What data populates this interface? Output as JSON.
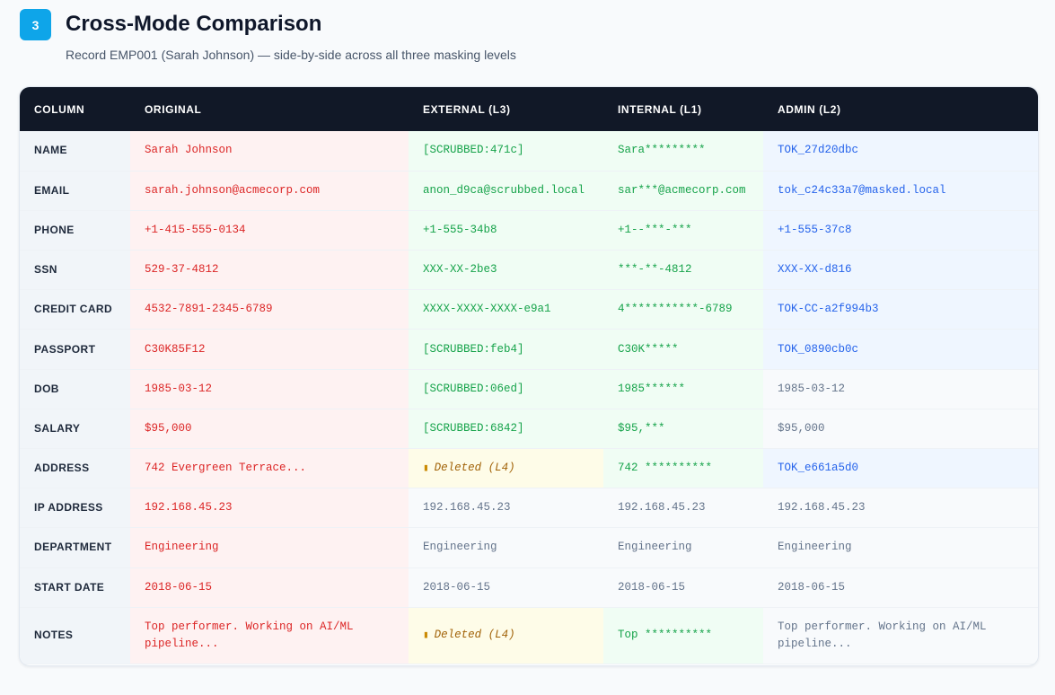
{
  "header": {
    "step": "3",
    "title": "Cross-Mode Comparison",
    "subtitle": "Record EMP001 (Sarah Johnson) — side-by-side across all three masking levels"
  },
  "table": {
    "columns": [
      "COLUMN",
      "ORIGINAL",
      "EXTERNAL (L3)",
      "INTERNAL (L1)",
      "ADMIN (L2)"
    ],
    "rows": [
      {
        "column": "NAME",
        "original": "Sarah Johnson",
        "external": {
          "value": "[SCRUBBED:471c]",
          "style": "scrubbed"
        },
        "internal": {
          "value": "Sara*********",
          "style": "scrubbed"
        },
        "admin": {
          "value": "TOK_27d20dbc",
          "style": "token"
        }
      },
      {
        "column": "EMAIL",
        "original": "sarah.johnson@acmecorp.com",
        "external": {
          "value": "anon_d9ca@scrubbed.local",
          "style": "scrubbed"
        },
        "internal": {
          "value": "sar***@acmecorp.com",
          "style": "scrubbed"
        },
        "admin": {
          "value": "tok_c24c33a7@masked.local",
          "style": "token"
        }
      },
      {
        "column": "PHONE",
        "original": "+1-415-555-0134",
        "external": {
          "value": "+1-555-34b8",
          "style": "scrubbed"
        },
        "internal": {
          "value": "+1--***-***",
          "style": "scrubbed"
        },
        "admin": {
          "value": "+1-555-37c8",
          "style": "token"
        }
      },
      {
        "column": "SSN",
        "original": "529-37-4812",
        "external": {
          "value": "XXX-XX-2be3",
          "style": "scrubbed"
        },
        "internal": {
          "value": "***-**-4812",
          "style": "scrubbed"
        },
        "admin": {
          "value": "XXX-XX-d816",
          "style": "token"
        }
      },
      {
        "column": "CREDIT CARD",
        "original": "4532-7891-2345-6789",
        "external": {
          "value": "XXXX-XXXX-XXXX-e9a1",
          "style": "scrubbed"
        },
        "internal": {
          "value": "4***********-6789",
          "style": "scrubbed"
        },
        "admin": {
          "value": "TOK-CC-a2f994b3",
          "style": "token"
        }
      },
      {
        "column": "PASSPORT",
        "original": "C30K85F12",
        "external": {
          "value": "[SCRUBBED:feb4]",
          "style": "scrubbed"
        },
        "internal": {
          "value": "C30K*****",
          "style": "scrubbed"
        },
        "admin": {
          "value": "TOK_0890cb0c",
          "style": "token"
        }
      },
      {
        "column": "DOB",
        "original": "1985-03-12",
        "external": {
          "value": "[SCRUBBED:06ed]",
          "style": "scrubbed"
        },
        "internal": {
          "value": "1985******",
          "style": "scrubbed"
        },
        "admin": {
          "value": "1985-03-12",
          "style": "plain"
        }
      },
      {
        "column": "SALARY",
        "original": "$95,000",
        "external": {
          "value": "[SCRUBBED:6842]",
          "style": "scrubbed"
        },
        "internal": {
          "value": "$95,***",
          "style": "scrubbed"
        },
        "admin": {
          "value": "$95,000",
          "style": "plain"
        }
      },
      {
        "column": "ADDRESS",
        "original": "742 Evergreen Terrace...",
        "external": {
          "value": "Deleted (L4)",
          "style": "deleted"
        },
        "internal": {
          "value": "742 **********",
          "style": "scrubbed"
        },
        "admin": {
          "value": "TOK_e661a5d0",
          "style": "token"
        }
      },
      {
        "column": "IP ADDRESS",
        "original": "192.168.45.23",
        "external": {
          "value": "192.168.45.23",
          "style": "plain"
        },
        "internal": {
          "value": "192.168.45.23",
          "style": "plain"
        },
        "admin": {
          "value": "192.168.45.23",
          "style": "plain"
        }
      },
      {
        "column": "DEPARTMENT",
        "original": "Engineering",
        "external": {
          "value": "Engineering",
          "style": "plain"
        },
        "internal": {
          "value": "Engineering",
          "style": "plain"
        },
        "admin": {
          "value": "Engineering",
          "style": "plain"
        }
      },
      {
        "column": "START DATE",
        "original": "2018-06-15",
        "external": {
          "value": "2018-06-15",
          "style": "plain"
        },
        "internal": {
          "value": "2018-06-15",
          "style": "plain"
        },
        "admin": {
          "value": "2018-06-15",
          "style": "plain"
        }
      },
      {
        "column": "NOTES",
        "original": "Top performer. Working on AI/ML pipeline...",
        "external": {
          "value": "Deleted (L4)",
          "style": "deleted"
        },
        "internal": {
          "value": "Top **********",
          "style": "scrubbed"
        },
        "admin": {
          "value": "Top performer. Working on AI/ML pipeline...",
          "style": "plain"
        }
      }
    ]
  },
  "icons": {
    "deleted": "trash-icon"
  },
  "colors": {
    "badge": "#0ea5e9",
    "header_bg": "#111827",
    "original": "#dc2626",
    "scrubbed": "#16a34a",
    "token": "#2563eb",
    "plain": "#64748b",
    "deleted": "#a16207"
  }
}
